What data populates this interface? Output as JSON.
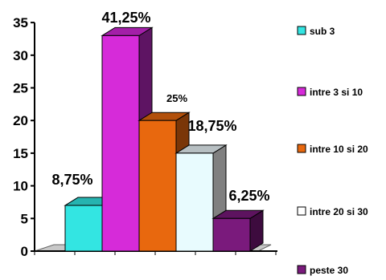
{
  "chart_data": {
    "type": "bar",
    "categories": [
      "sub 3",
      "intre 3 si 10",
      "intre 10 si 20",
      "intre 20 si 30",
      "peste 30"
    ],
    "values": [
      7,
      33,
      20,
      15,
      5
    ],
    "data_labels": [
      "8,75%",
      "41,25%",
      "25%",
      "18,75%",
      "6,25%"
    ],
    "y_ticks": [
      "0",
      "5",
      "10",
      "15",
      "20",
      "25",
      "30",
      "35"
    ],
    "ylim": [
      0,
      35
    ],
    "legend_placement": "right",
    "style": "3d-columns",
    "colors": {
      "front": [
        "#33e5e2",
        "#d62bd9",
        "#e8680e",
        "#e8fbfe",
        "#7a1a7c"
      ],
      "side": [
        "#1d7c7a",
        "#5e1463",
        "#7a3608",
        "#808080",
        "#3d0b3e"
      ],
      "top": [
        "#26b3b0",
        "#a31fa8",
        "#b2500b",
        "#b7bfc2",
        "#5d135f"
      ],
      "legend": [
        "#33e5e2",
        "#d62bd9",
        "#e8680e",
        "#ffffff",
        "#7a1a7c"
      ]
    }
  }
}
